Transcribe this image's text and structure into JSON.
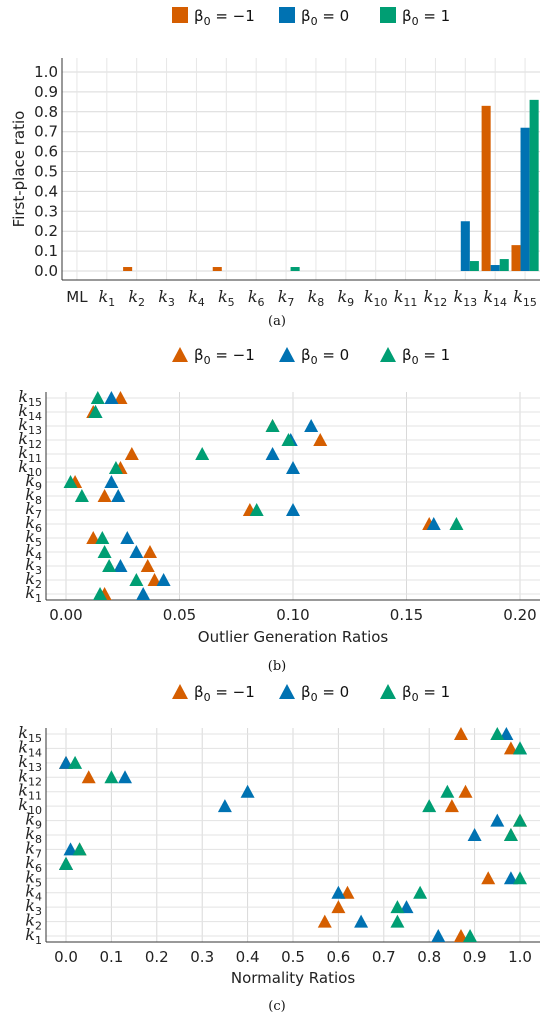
{
  "colors": {
    "neg1": "#D55E00",
    "zero": "#0072B2",
    "pos1": "#009E73"
  },
  "legend": [
    {
      "label": "β0 = −1",
      "color": "#D55E00"
    },
    {
      "label": "β0 = 0",
      "color": "#0072B2"
    },
    {
      "label": "β0 = 1",
      "color": "#009E73"
    }
  ],
  "chart_data": [
    {
      "panel": "a",
      "type": "bar",
      "caption": "(a)",
      "ylabel": "First-place ratio",
      "xlabel": "",
      "ylim": [
        0,
        1.0
      ],
      "yticks": [
        0.0,
        0.1,
        0.2,
        0.3,
        0.4,
        0.5,
        0.6,
        0.7,
        0.8,
        0.9,
        1.0
      ],
      "categories": [
        "ML",
        "k1",
        "k2",
        "k3",
        "k4",
        "k5",
        "k6",
        "k7",
        "k8",
        "k9",
        "k10",
        "k11",
        "k12",
        "k13",
        "k14",
        "k15"
      ],
      "series": [
        {
          "name": "β0 = −1",
          "values": [
            0,
            0,
            0.02,
            0,
            0,
            0.02,
            0,
            0,
            0,
            0,
            0,
            0,
            0,
            0,
            0.83,
            0.13
          ]
        },
        {
          "name": "β0 = 0",
          "values": [
            0,
            0,
            0,
            0,
            0,
            0,
            0,
            0,
            0,
            0,
            0,
            0,
            0,
            0.25,
            0.03,
            0.72
          ]
        },
        {
          "name": "β0 = 1",
          "values": [
            0,
            0,
            0,
            0,
            0,
            0,
            0,
            0.02,
            0,
            0,
            0,
            0,
            0,
            0.05,
            0.06,
            0.86
          ]
        }
      ],
      "grid": true
    },
    {
      "panel": "b",
      "type": "scatter",
      "caption": "(b)",
      "xlabel": "Outlier Generation Ratios",
      "ylabel": "",
      "xlim": [
        0,
        0.2
      ],
      "xticks": [
        0.0,
        0.05,
        0.1,
        0.15,
        0.2
      ],
      "categories": [
        "k1",
        "k2",
        "k3",
        "k4",
        "k5",
        "k6",
        "k7",
        "k8",
        "k9",
        "k10",
        "k11",
        "k12",
        "k13",
        "k14",
        "k15"
      ],
      "series": [
        {
          "name": "β0 = −1",
          "values": [
            0.017,
            0.039,
            0.036,
            0.037,
            0.012,
            0.16,
            0.081,
            0.017,
            0.004,
            0.024,
            0.029,
            0.112,
            0.091,
            0.012,
            0.024
          ]
        },
        {
          "name": "β0 = 0",
          "values": [
            0.034,
            0.043,
            0.024,
            0.031,
            0.027,
            0.162,
            0.1,
            0.023,
            0.02,
            0.1,
            0.091,
            0.099,
            0.108,
            0.013,
            0.02
          ]
        },
        {
          "name": "β0 = 1",
          "values": [
            0.015,
            0.031,
            0.019,
            0.017,
            0.016,
            0.172,
            0.084,
            0.007,
            0.002,
            0.022,
            0.06,
            0.098,
            0.091,
            0.013,
            0.014
          ]
        }
      ],
      "grid": true
    },
    {
      "panel": "c",
      "type": "scatter",
      "caption": "(c)",
      "xlabel": "Normality Ratios",
      "ylabel": "",
      "xlim": [
        0,
        1.0
      ],
      "xticks": [
        0.0,
        0.1,
        0.2,
        0.3,
        0.4,
        0.5,
        0.6,
        0.7,
        0.8,
        0.9,
        1.0
      ],
      "categories": [
        "k1",
        "k2",
        "k3",
        "k4",
        "k5",
        "k6",
        "k7",
        "k8",
        "k9",
        "k10",
        "k11",
        "k12",
        "k13",
        "k14",
        "k15"
      ],
      "series": [
        {
          "name": "β0 = −1",
          "values": [
            0.87,
            0.57,
            0.6,
            0.62,
            0.93,
            0.0,
            0.03,
            0.98,
            1.0,
            0.85,
            0.88,
            0.05,
            0.0,
            0.98,
            0.87
          ]
        },
        {
          "name": "β0 = 0",
          "values": [
            0.82,
            0.65,
            0.75,
            0.6,
            0.98,
            0.0,
            0.01,
            0.9,
            0.95,
            0.35,
            0.4,
            0.13,
            0.0,
            1.0,
            0.97
          ]
        },
        {
          "name": "β0 = 1",
          "values": [
            0.89,
            0.73,
            0.73,
            0.78,
            1.0,
            0.0,
            0.03,
            0.98,
            1.0,
            0.8,
            0.84,
            0.1,
            0.02,
            1.0,
            0.95
          ]
        }
      ],
      "grid": true
    }
  ]
}
